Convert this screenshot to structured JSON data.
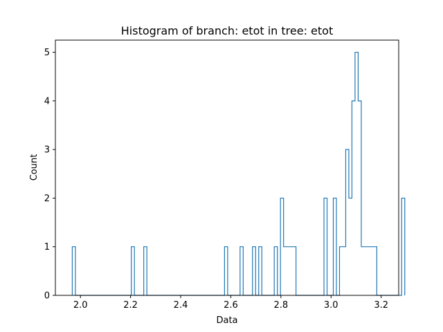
{
  "chart_data": {
    "type": "histogram",
    "title": "Histogram of branch: etot in tree: etot",
    "xlabel": "Data",
    "ylabel": "Count",
    "xlim": [
      1.9,
      3.27
    ],
    "ylim": [
      0,
      5.25
    ],
    "xticks": [
      2.0,
      2.2,
      2.4,
      2.6,
      2.8,
      3.0,
      3.2
    ],
    "yticks": [
      0,
      1,
      2,
      3,
      4,
      5
    ],
    "grid": false,
    "bin_start": 1.9674,
    "bin_width": 0.0124,
    "counts": [
      1,
      0,
      0,
      0,
      0,
      0,
      0,
      0,
      0,
      0,
      0,
      0,
      0,
      0,
      0,
      0,
      0,
      0,
      0,
      1,
      0,
      0,
      0,
      1,
      0,
      0,
      0,
      0,
      0,
      0,
      0,
      0,
      0,
      0,
      0,
      0,
      0,
      0,
      0,
      0,
      0,
      0,
      0,
      0,
      0,
      0,
      0,
      0,
      0,
      1,
      0,
      0,
      0,
      0,
      1,
      0,
      0,
      0,
      1,
      0,
      1,
      0,
      0,
      0,
      0,
      1,
      0,
      2,
      1,
      1,
      1,
      1,
      0,
      0,
      0,
      0,
      0,
      0,
      0,
      0,
      0,
      2,
      0,
      0,
      2,
      0,
      1,
      1,
      3,
      2,
      4,
      5,
      4,
      1,
      1,
      1,
      1,
      1,
      0,
      0,
      0,
      0,
      0,
      0,
      0,
      0,
      2
    ],
    "color": "#1f77b4"
  }
}
